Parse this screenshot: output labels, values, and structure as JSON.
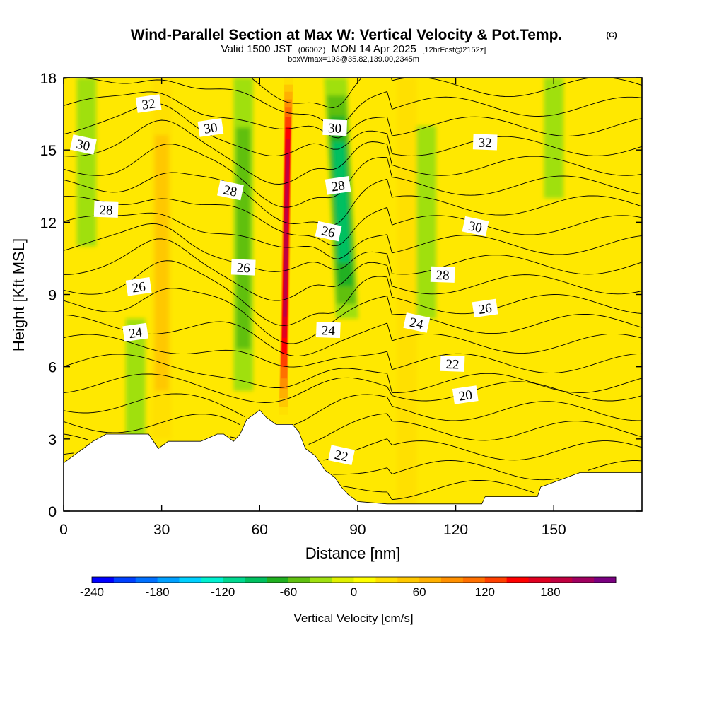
{
  "title": "Wind-Parallel Section at Max W: Vertical Velocity & Pot.Temp.",
  "title_unit": "(C)",
  "subtitle": {
    "prefix": "Valid 1500 JST",
    "utc": "(0600Z)",
    "date": "MON 14 Apr 2025",
    "forecast": "[12hrFcst@2152z]"
  },
  "boxinfo": "boxWmax=193@35.82,139.00,2345m",
  "chart_data": {
    "type": "heatmap",
    "xlabel": "Distance [nm]",
    "ylabel": "Height [Kft MSL]",
    "xlim": [
      0,
      177
    ],
    "ylim": [
      0,
      18
    ],
    "x_ticks": [
      "0",
      "30",
      "60",
      "90",
      "120",
      "150"
    ],
    "y_ticks": [
      "0",
      "3",
      "6",
      "9",
      "12",
      "15",
      "18"
    ],
    "colorbar": {
      "title": "Vertical Velocity [cm/s]",
      "min": -240,
      "max": 240,
      "step": 20,
      "tick_labels": [
        "-240",
        "-180",
        "-120",
        "-60",
        "0",
        "60",
        "120",
        "180"
      ],
      "colors": [
        "#0000ff",
        "#0040ff",
        "#0070ff",
        "#00a0ff",
        "#00d0ff",
        "#00f0d0",
        "#00d890",
        "#00c060",
        "#20b020",
        "#60c010",
        "#a0e010",
        "#e0f000",
        "#ffff00",
        "#ffe000",
        "#ffc800",
        "#ffb000",
        "#ff9000",
        "#ff7000",
        "#ff4000",
        "#ff0000",
        "#e00020",
        "#c00040",
        "#a00060",
        "#7a0080"
      ]
    },
    "vertical_velocity_features": [
      {
        "kind": "updraft core",
        "x_nm": 68,
        "z_kft": [
          4,
          18
        ],
        "max_cms": 193
      },
      {
        "kind": "updraft",
        "x_nm": 30,
        "z_kft": [
          3,
          18
        ],
        "max_cms": 40
      },
      {
        "kind": "updraft",
        "x_nm": 105,
        "z_kft": [
          0,
          18
        ],
        "max_cms": 30
      },
      {
        "kind": "downdraft",
        "x_nm": 85,
        "z_kft": [
          8,
          18
        ],
        "min_cms": -90
      },
      {
        "kind": "downdraft",
        "x_nm": 55,
        "z_kft": [
          5,
          18
        ],
        "min_cms": -40
      },
      {
        "kind": "downdraft",
        "x_nm": 22,
        "z_kft": [
          3,
          8
        ],
        "min_cms": -30
      },
      {
        "kind": "downdraft",
        "x_nm": 7,
        "z_kft": [
          11,
          18
        ],
        "min_cms": -30
      },
      {
        "kind": "downdraft",
        "x_nm": 111,
        "z_kft": [
          8,
          16
        ],
        "min_cms": -30
      },
      {
        "kind": "downdraft",
        "x_nm": 150,
        "z_kft": [
          13,
          18
        ],
        "min_cms": -20
      }
    ],
    "potential_temperature_contours": [
      {
        "theta_c": 20,
        "label_x_nm": 123,
        "label_z_kft": 4.8
      },
      {
        "theta_c": 22,
        "label_x_nm": 119,
        "label_z_kft": 6.1
      },
      {
        "theta_c": 22,
        "label_x_nm": 85,
        "label_z_kft": 2.3
      },
      {
        "theta_c": 24,
        "label_x_nm": 22,
        "label_z_kft": 7.4
      },
      {
        "theta_c": 24,
        "label_x_nm": 81,
        "label_z_kft": 7.5
      },
      {
        "theta_c": 24,
        "label_x_nm": 108,
        "label_z_kft": 7.8
      },
      {
        "theta_c": 26,
        "label_x_nm": 23,
        "label_z_kft": 9.3
      },
      {
        "theta_c": 26,
        "label_x_nm": 55,
        "label_z_kft": 10.1
      },
      {
        "theta_c": 26,
        "label_x_nm": 81,
        "label_z_kft": 11.6
      },
      {
        "theta_c": 26,
        "label_x_nm": 129,
        "label_z_kft": 8.4
      },
      {
        "theta_c": 28,
        "label_x_nm": 13,
        "label_z_kft": 12.5
      },
      {
        "theta_c": 28,
        "label_x_nm": 51,
        "label_z_kft": 13.3
      },
      {
        "theta_c": 28,
        "label_x_nm": 84,
        "label_z_kft": 13.5
      },
      {
        "theta_c": 28,
        "label_x_nm": 116,
        "label_z_kft": 9.8
      },
      {
        "theta_c": 30,
        "label_x_nm": 6,
        "label_z_kft": 15.2
      },
      {
        "theta_c": 30,
        "label_x_nm": 45,
        "label_z_kft": 15.9
      },
      {
        "theta_c": 30,
        "label_x_nm": 83,
        "label_z_kft": 15.9
      },
      {
        "theta_c": 30,
        "label_x_nm": 126,
        "label_z_kft": 11.8
      },
      {
        "theta_c": 32,
        "label_x_nm": 26,
        "label_z_kft": 16.9
      },
      {
        "theta_c": 32,
        "label_x_nm": 129,
        "label_z_kft": 15.3
      }
    ],
    "terrain_kft": [
      [
        0,
        2.0
      ],
      [
        3,
        2.3
      ],
      [
        6,
        2.6
      ],
      [
        9,
        2.9
      ],
      [
        13,
        3.2
      ],
      [
        26,
        3.2
      ],
      [
        29,
        2.6
      ],
      [
        32,
        2.9
      ],
      [
        42,
        2.9
      ],
      [
        47,
        3.2
      ],
      [
        49,
        3.2
      ],
      [
        52,
        2.9
      ],
      [
        54,
        3.2
      ],
      [
        56,
        3.8
      ],
      [
        60,
        4.2
      ],
      [
        62,
        3.9
      ],
      [
        65,
        3.6
      ],
      [
        70,
        3.6
      ],
      [
        72,
        3.3
      ],
      [
        74,
        2.6
      ],
      [
        77,
        2.3
      ],
      [
        80,
        1.7
      ],
      [
        83,
        1.4
      ],
      [
        85,
        1.0
      ],
      [
        87,
        0.7
      ],
      [
        90,
        0.4
      ],
      [
        99,
        0.3
      ],
      [
        128,
        0.3
      ],
      [
        129,
        0.6
      ],
      [
        145,
        0.6
      ],
      [
        146,
        1.0
      ],
      [
        152,
        1.3
      ],
      [
        156,
        1.5
      ],
      [
        158,
        1.6
      ],
      [
        165,
        1.6
      ],
      [
        177,
        1.6
      ]
    ]
  }
}
